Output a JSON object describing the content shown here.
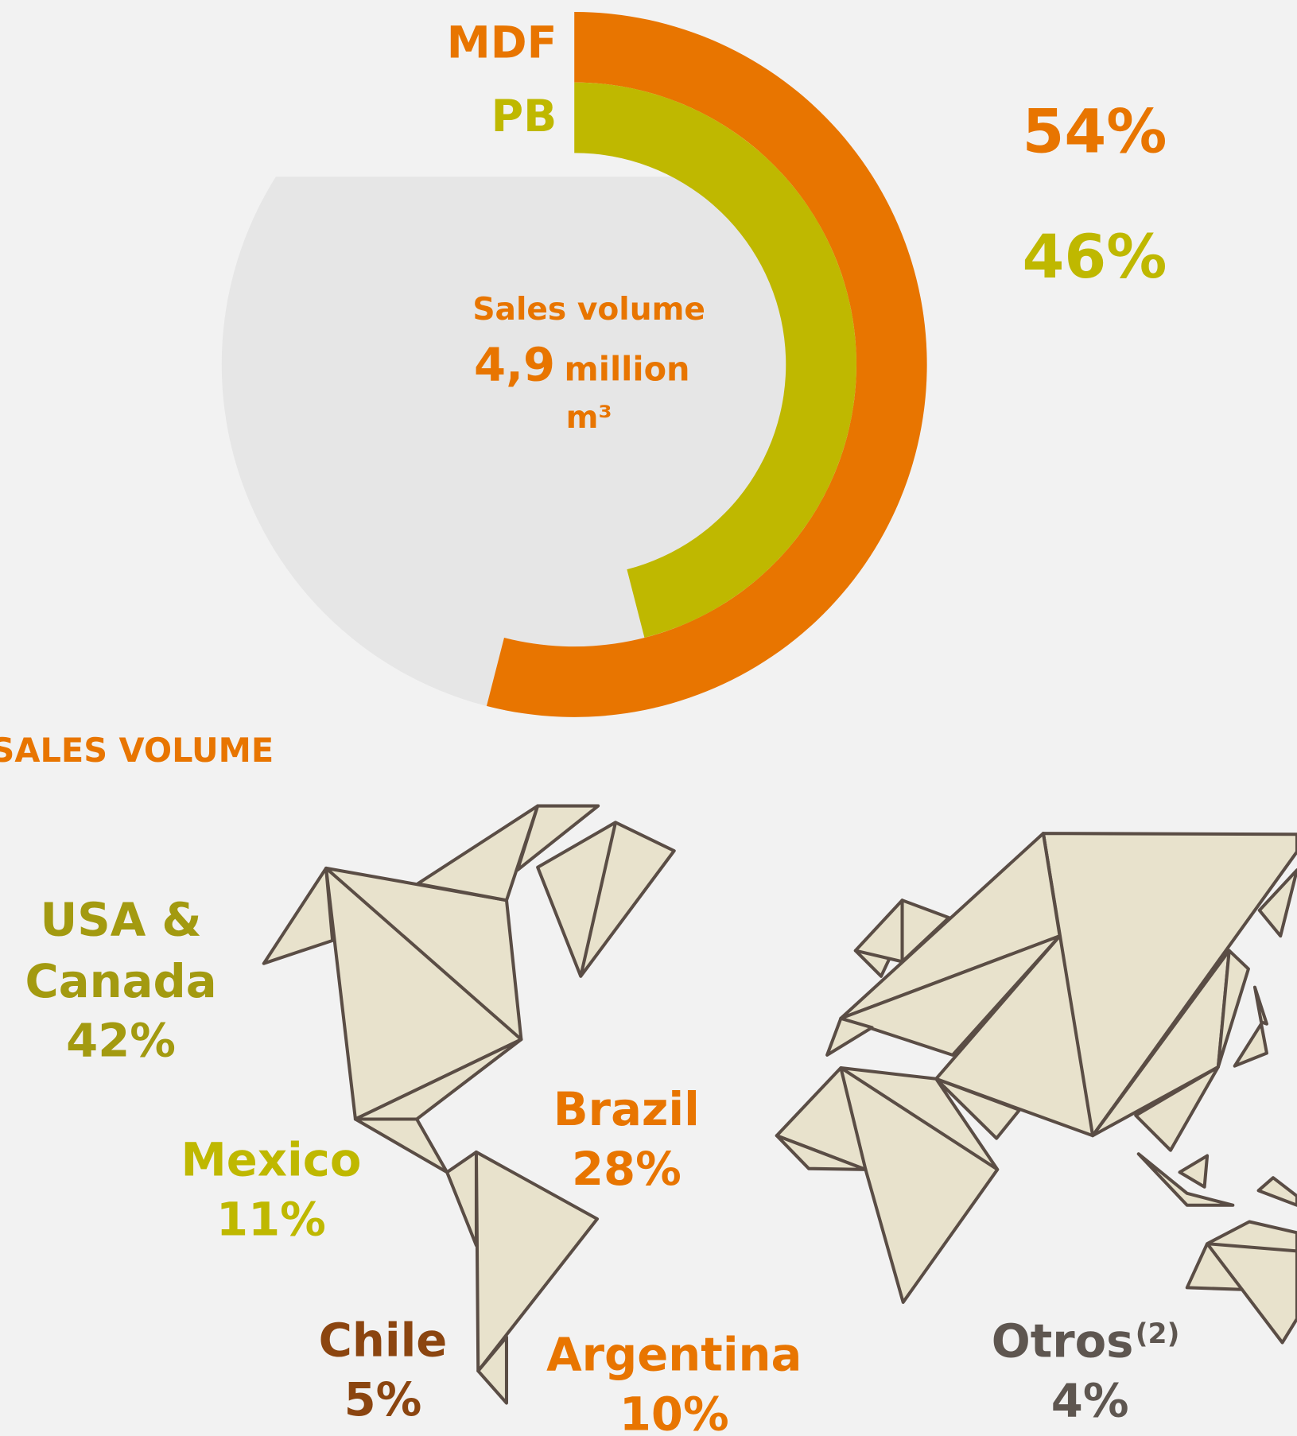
{
  "chart_data": {
    "type": "radial_bar",
    "categories": [
      "MDF",
      "PB"
    ],
    "values": [
      54,
      46
    ],
    "value_labels": [
      "54%",
      "46%"
    ],
    "colors": [
      "#e87500",
      "#bfb800"
    ],
    "track_color": "#e6e6e6",
    "center_label": "Sales volume",
    "center_value": "4,9",
    "center_unit": [
      "million",
      "m³"
    ]
  },
  "map": {
    "title": "SALES VOLUME",
    "regions": [
      {
        "name": [
          "USA &",
          "Canada"
        ],
        "share": "42%",
        "color": "#a39a10"
      },
      {
        "name": [
          "Mexico"
        ],
        "share": "11%",
        "color": "#bfb800"
      },
      {
        "name": [
          "Brazil"
        ],
        "share": "28%",
        "color": "#e87500"
      },
      {
        "name": [
          "Chile"
        ],
        "share": "5%",
        "color": "#8b4510"
      },
      {
        "name": [
          "Argentina"
        ],
        "share": "10%",
        "color": "#e87500"
      },
      {
        "name": [
          "Otros"
        ],
        "note": "(2)",
        "share": "4%",
        "color": "#5e5650"
      }
    ]
  }
}
